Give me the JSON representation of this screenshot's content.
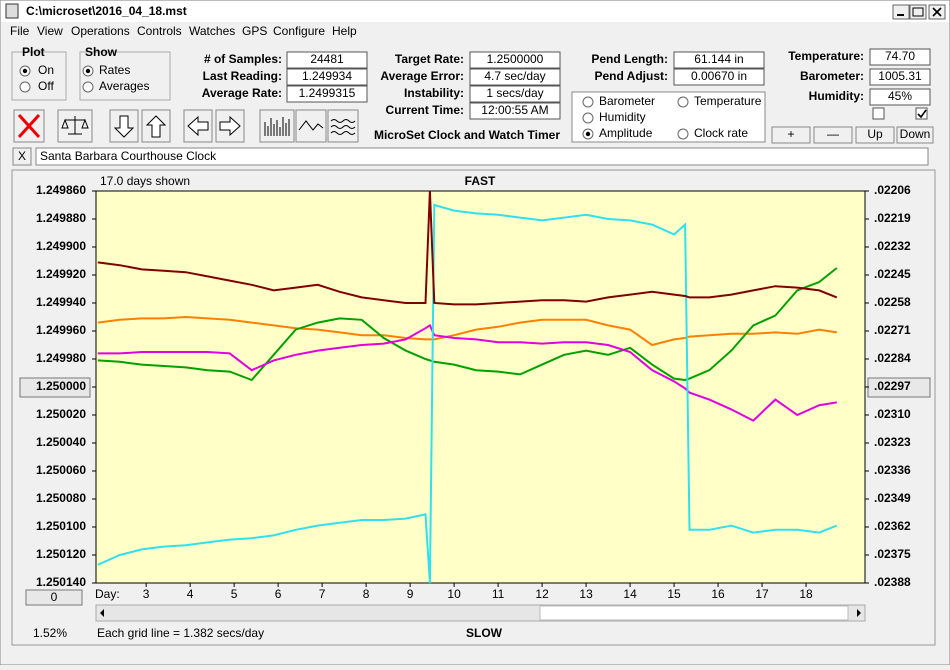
{
  "window": {
    "title": "C:\\microset\\2016_04_18.mst"
  },
  "menu": [
    "File",
    "View",
    "Operations",
    "Controls",
    "Watches",
    "GPS",
    "Configure",
    "Help"
  ],
  "plot_group": {
    "title": "Plot",
    "options": [
      "On",
      "Off"
    ],
    "selected": 0
  },
  "show_group": {
    "title": "Show",
    "options": [
      "Rates",
      "Averages"
    ],
    "selected": 0
  },
  "fields": [
    {
      "label": "# of Samples:",
      "value": "24481"
    },
    {
      "label": "Last Reading:",
      "value": "1.249934"
    },
    {
      "label": "Average Rate:",
      "value": "1.2499315"
    },
    {
      "label": "Target Rate:",
      "value": "1.2500000"
    },
    {
      "label": "Average Error:",
      "value": "4.7 sec/day"
    },
    {
      "label": "Instability:",
      "value": "1 secs/day"
    },
    {
      "label": "Current Time:",
      "value": "12:00:55 AM"
    },
    {
      "label": "Pend Length:",
      "value": "61.144 in"
    },
    {
      "label": "Pend Adjust:",
      "value": "0.00670 in"
    },
    {
      "label": "Temperature:",
      "value": "74.70"
    },
    {
      "label": "Barometer:",
      "value": "1005.31"
    },
    {
      "label": "Humidity:",
      "value": "45%"
    }
  ],
  "app_name": "MicroSet Clock and Watch Timer",
  "buttons": [
    "+",
    "—",
    "Up",
    "Down"
  ],
  "checkboxes": [
    false,
    true
  ],
  "close_button": "X",
  "clock_name": "Santa Barbara Courthouse Clock",
  "scroll_value": "0",
  "chart_data": {
    "type": "line",
    "xlabel": "Day:",
    "annotations": [
      "17.0 days shown",
      "FAST",
      "SLOW",
      "Each grid line = 1.382 secs/day",
      "1.52%"
    ],
    "x": [
      1.9,
      2.4,
      2.9,
      3.4,
      3.9,
      4.4,
      4.9,
      5.4,
      5.9,
      6.4,
      6.9,
      7.4,
      7.9,
      8.4,
      8.9,
      9.35,
      9.45,
      9.55,
      10,
      10.5,
      11,
      11.5,
      12,
      12.5,
      13,
      13.5,
      14,
      14.5,
      15,
      15.25,
      15.35,
      15.8,
      16.3,
      16.8,
      17.3,
      17.8,
      18.3,
      18.7
    ],
    "xlim": [
      1.86,
      19.34
    ],
    "xticks": [
      3,
      4,
      5,
      6,
      7,
      8,
      9,
      10,
      11,
      12,
      13,
      14,
      15,
      16,
      17,
      18
    ],
    "ylim": [
      1.25014,
      1.24986
    ],
    "yticks": [
      {
        "value": 1.24986,
        "label": "1.249860"
      },
      {
        "value": 1.24988,
        "label": "1.249880"
      },
      {
        "value": 1.2499,
        "label": "1.249900"
      },
      {
        "value": 1.24992,
        "label": "1.249920"
      },
      {
        "value": 1.24994,
        "label": "1.249940"
      },
      {
        "value": 1.24996,
        "label": "1.249960"
      },
      {
        "value": 1.24998,
        "label": "1.249980"
      },
      {
        "value": 1.25,
        "label": "1.250000"
      },
      {
        "value": 1.25002,
        "label": "1.250020"
      },
      {
        "value": 1.25004,
        "label": "1.250040"
      },
      {
        "value": 1.25006,
        "label": "1.250060"
      },
      {
        "value": 1.25008,
        "label": "1.250080"
      },
      {
        "value": 1.2501,
        "label": "1.250100"
      },
      {
        "value": 1.25012,
        "label": "1.250120"
      },
      {
        "value": 1.25014,
        "label": "1.250140"
      }
    ],
    "y2lim": [
      0.02388,
      0.02206
    ],
    "y2ticks": [
      {
        "value": 0.02206,
        "label": ".02206"
      },
      {
        "value": 0.02219,
        "label": ".02219"
      },
      {
        "value": 0.02232,
        "label": ".02232"
      },
      {
        "value": 0.02245,
        "label": ".02245"
      },
      {
        "value": 0.02258,
        "label": ".02258"
      },
      {
        "value": 0.02271,
        "label": ".02271"
      },
      {
        "value": 0.02284,
        "label": ".02284"
      },
      {
        "value": 0.02297,
        "label": ".02297"
      },
      {
        "value": 0.0231,
        "label": ".02310"
      },
      {
        "value": 0.02323,
        "label": ".02323"
      },
      {
        "value": 0.02336,
        "label": ".02336"
      },
      {
        "value": 0.02349,
        "label": ".02349"
      },
      {
        "value": 0.02362,
        "label": ".02362"
      },
      {
        "value": 0.02375,
        "label": ".02375"
      },
      {
        "value": 0.02388,
        "label": ".02388"
      }
    ],
    "grid": false,
    "legend_selected": 3,
    "series": [
      {
        "name": "Barometer",
        "color": "#ff8000",
        "values": [
          1.249954,
          1.249952,
          1.249951,
          1.249951,
          1.24995,
          1.249951,
          1.249952,
          1.249954,
          1.249956,
          1.249958,
          1.249959,
          1.249961,
          1.249963,
          1.249963,
          1.249965,
          1.249966,
          1.249966,
          1.249966,
          1.249963,
          1.249959,
          1.249957,
          1.249954,
          1.249952,
          1.249952,
          1.249952,
          1.249956,
          1.249959,
          1.24997,
          1.249966,
          1.249965,
          1.249964,
          1.249963,
          1.249962,
          1.249962,
          1.249961,
          1.249962,
          1.249959,
          1.249961
        ]
      },
      {
        "name": "Temperature",
        "color": "#00a000",
        "values": [
          1.249981,
          1.249982,
          1.249984,
          1.249985,
          1.249986,
          1.249988,
          1.249989,
          1.249995,
          1.249977,
          1.249959,
          1.249954,
          1.249951,
          1.249952,
          1.249965,
          1.249974,
          1.24998,
          1.249981,
          1.249982,
          1.249984,
          1.249988,
          1.249989,
          1.249991,
          1.249984,
          1.249977,
          1.249974,
          1.249977,
          1.249972,
          1.249984,
          1.249994,
          1.249995,
          1.249994,
          1.249988,
          1.249974,
          1.249956,
          1.249949,
          1.249931,
          1.249925,
          1.249915
        ]
      },
      {
        "name": "Humidity",
        "color": "#e000e0",
        "values": [
          1.249976,
          1.249976,
          1.249975,
          1.249975,
          1.249975,
          1.249975,
          1.249976,
          1.249988,
          1.249981,
          1.249977,
          1.249974,
          1.249972,
          1.24997,
          1.249969,
          1.249966,
          1.249958,
          1.249956,
          1.249963,
          1.249965,
          1.249966,
          1.249968,
          1.249968,
          1.249969,
          1.249968,
          1.249968,
          1.24997,
          1.249975,
          1.249988,
          1.249996,
          1.250001,
          1.250004,
          1.250009,
          1.250016,
          1.250024,
          1.250009,
          1.25002,
          1.250013,
          1.250011
        ]
      },
      {
        "name": "Amplitude",
        "color": "#30e0f0",
        "values": [
          1.250127,
          1.25012,
          1.250116,
          1.250114,
          1.250113,
          1.250111,
          1.250109,
          1.250108,
          1.250106,
          1.250102,
          1.250099,
          1.250097,
          1.250095,
          1.250095,
          1.250094,
          1.250091,
          1.25014,
          1.24987,
          1.249874,
          1.249876,
          1.249877,
          1.249879,
          1.249881,
          1.249879,
          1.249877,
          1.24988,
          1.249881,
          1.249884,
          1.249891,
          1.249884,
          1.250102,
          1.250102,
          1.250099,
          1.250104,
          1.250102,
          1.250102,
          1.250104,
          1.250099
        ]
      },
      {
        "name": "Clock rate",
        "color": "#800000",
        "values": [
          1.249911,
          1.249913,
          1.249916,
          1.249917,
          1.249918,
          1.249921,
          1.249924,
          1.249927,
          1.249931,
          1.249929,
          1.249927,
          1.249932,
          1.249936,
          1.249938,
          1.24994,
          1.24994,
          1.24986,
          1.24994,
          1.249941,
          1.249941,
          1.24994,
          1.249939,
          1.249938,
          1.249938,
          1.249939,
          1.249936,
          1.249934,
          1.249932,
          1.249934,
          1.249935,
          1.249936,
          1.249936,
          1.249934,
          1.249931,
          1.249928,
          1.249929,
          1.249931,
          1.249936
        ]
      }
    ]
  }
}
